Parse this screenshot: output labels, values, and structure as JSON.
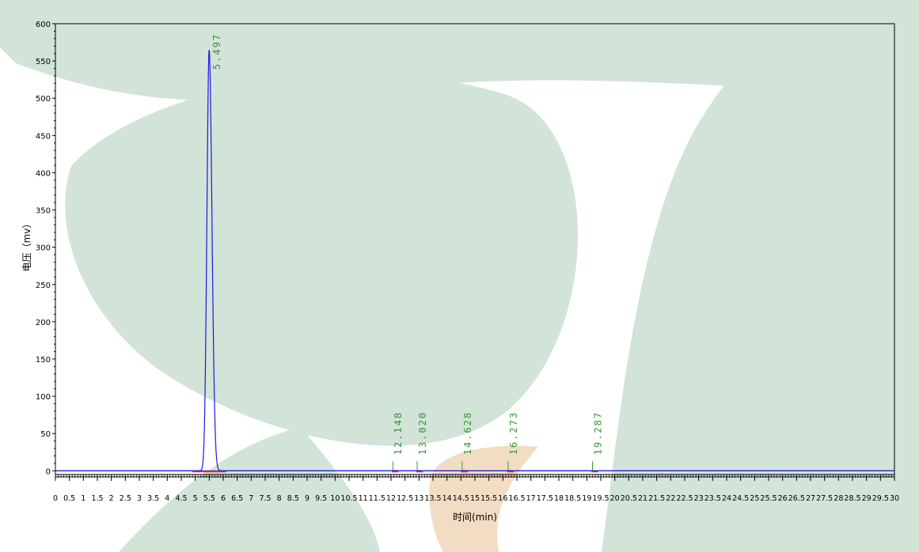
{
  "chart_data": {
    "type": "line",
    "title": "",
    "xlabel": "时间(min)",
    "ylabel": "电压（mv）",
    "xlim": [
      0,
      30
    ],
    "ylim": [
      -5,
      600
    ],
    "x_ticks": [
      "0",
      "0.5",
      "1",
      "1.5",
      "2",
      "2.5",
      "3",
      "3.5",
      "4",
      "4.5",
      "5",
      "5.5",
      "6",
      "6.5",
      "7",
      "7.5",
      "8",
      "8.5",
      "9",
      "9.5",
      "10",
      "10.5",
      "11",
      "11.5",
      "12",
      "12.5",
      "13",
      "13.5",
      "14",
      "14.5",
      "15",
      "15.5",
      "16",
      "16.5",
      "17",
      "17.5",
      "18",
      "18.5",
      "19",
      "19.5",
      "20",
      "20.5",
      "21",
      "21.5",
      "22",
      "22.5",
      "23",
      "23.5",
      "24",
      "24.5",
      "25",
      "25.5",
      "26",
      "26.5",
      "27",
      "27.5",
      "28",
      "28.5",
      "29",
      "29.5",
      "30"
    ],
    "y_ticks": [
      "600",
      "550",
      "500",
      "450",
      "400",
      "350",
      "300",
      "250",
      "200",
      "150",
      "100",
      "50",
      "0"
    ],
    "grid": false,
    "baseline_mv": 0,
    "peaks": [
      {
        "rt": "5.497",
        "height_mv": 565
      },
      {
        "rt": "12.148",
        "height_mv": 0.4
      },
      {
        "rt": "13.020",
        "height_mv": 0.3
      },
      {
        "rt": "14.628",
        "height_mv": 0.4
      },
      {
        "rt": "16.273",
        "height_mv": 0.3
      },
      {
        "rt": "19.287",
        "height_mv": 0.2
      }
    ],
    "colors": {
      "trace": "#1a1adf",
      "baseline": "#1a1adf",
      "label": "#2e9a2e",
      "integration": "#e03030"
    }
  }
}
